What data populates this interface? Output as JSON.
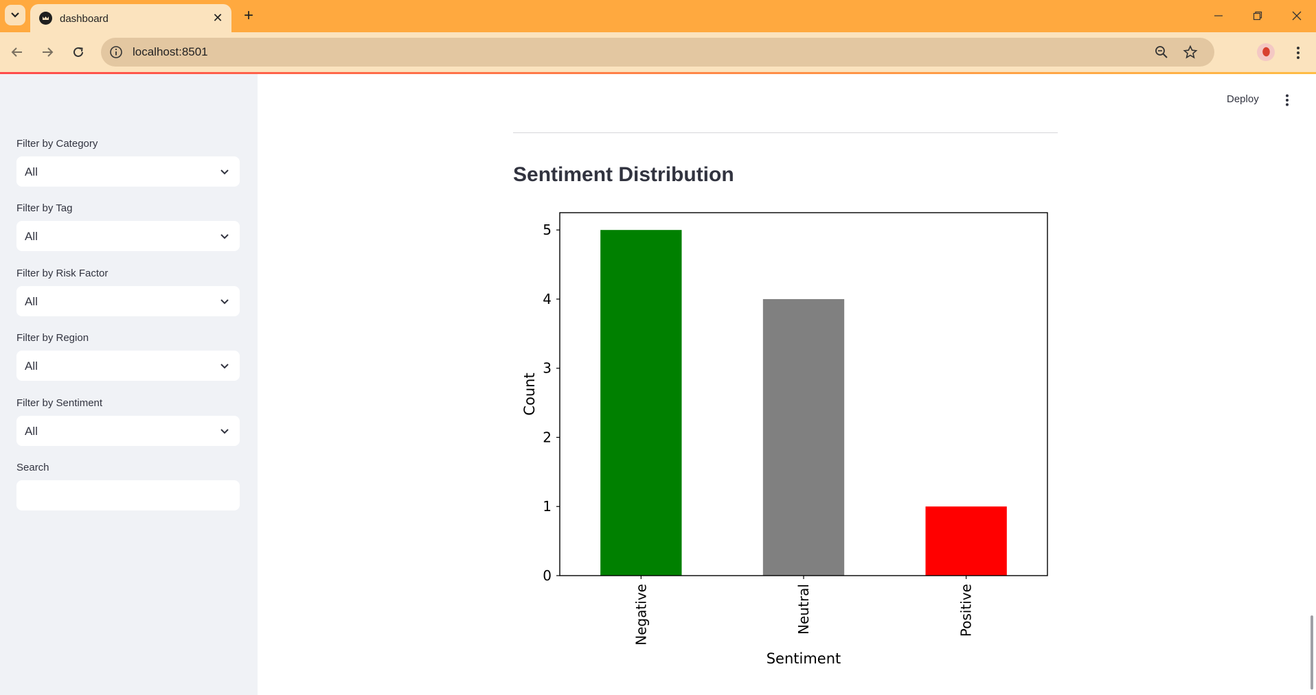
{
  "browser": {
    "tab_title": "dashboard",
    "url": "localhost:8501"
  },
  "sidebar": {
    "filters": [
      {
        "label": "Filter by Category",
        "value": "All"
      },
      {
        "label": "Filter by Tag",
        "value": "All"
      },
      {
        "label": "Filter by Risk Factor",
        "value": "All"
      },
      {
        "label": "Filter by Region",
        "value": "All"
      },
      {
        "label": "Filter by Sentiment",
        "value": "All"
      }
    ],
    "search": {
      "label": "Search",
      "value": ""
    }
  },
  "header": {
    "deploy_label": "Deploy"
  },
  "main": {
    "section_title": "Sentiment Distribution"
  },
  "chart_data": {
    "type": "bar",
    "categories": [
      "Negative",
      "Neutral",
      "Positive"
    ],
    "values": [
      5,
      4,
      1
    ],
    "colors": [
      "#008000",
      "#808080",
      "#ff0000"
    ],
    "xlabel": "Sentiment",
    "ylabel": "Count",
    "ylim": [
      0,
      5.25
    ],
    "yticks": [
      0,
      1,
      2,
      3,
      4,
      5
    ],
    "grid": false
  }
}
